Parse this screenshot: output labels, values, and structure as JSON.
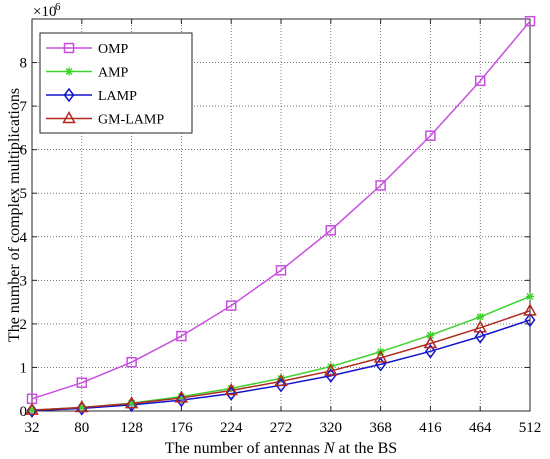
{
  "chart_data": {
    "type": "line",
    "xlabel_prefix": "The number of antennas ",
    "xlabel_var": "N",
    "xlabel_suffix": " at the BS",
    "ylabel": "The number of complex multiplications",
    "scale_base": "×10",
    "scale_exp": "6",
    "x": [
      32,
      80,
      128,
      176,
      224,
      272,
      320,
      368,
      416,
      464,
      512
    ],
    "xticks": [
      "32",
      "80",
      "128",
      "176",
      "224",
      "272",
      "320",
      "368",
      "416",
      "464",
      "512"
    ],
    "yticks": [
      "0",
      "1",
      "2",
      "3",
      "4",
      "5",
      "6",
      "7",
      "8"
    ],
    "xlim": [
      32,
      512
    ],
    "ylim": [
      0,
      9
    ],
    "grid": true,
    "legend_position": "top-left",
    "series": [
      {
        "name": "OMP",
        "color": "#c94fe0",
        "marker": "square",
        "values": [
          0.28,
          0.65,
          1.12,
          1.72,
          2.42,
          3.23,
          4.15,
          5.18,
          6.32,
          7.58,
          8.95
        ]
      },
      {
        "name": "AMP",
        "color": "#3cd32c",
        "marker": "asterisk",
        "values": [
          0.02,
          0.08,
          0.18,
          0.33,
          0.52,
          0.75,
          1.02,
          1.36,
          1.74,
          2.16,
          2.63
        ]
      },
      {
        "name": "LAMP",
        "color": "#1414cc",
        "marker": "diamond",
        "values": [
          0.01,
          0.06,
          0.14,
          0.25,
          0.4,
          0.59,
          0.81,
          1.07,
          1.37,
          1.71,
          2.09
        ]
      },
      {
        "name": "GM-LAMP",
        "color": "#b2291e",
        "marker": "triangle",
        "values": [
          0.02,
          0.08,
          0.17,
          0.3,
          0.47,
          0.68,
          0.92,
          1.22,
          1.55,
          1.91,
          2.3
        ]
      }
    ]
  }
}
